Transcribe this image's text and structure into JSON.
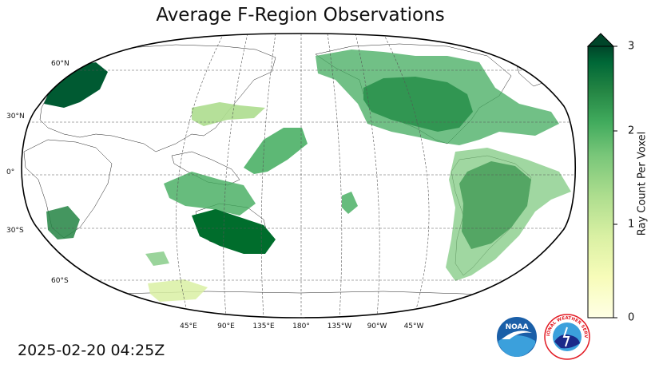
{
  "title": "Average F-Region Observations",
  "timestamp": "2025-02-20 04:25Z",
  "map": {
    "projection": "robinson",
    "central_longitude": "180",
    "grid": true,
    "lat_labels": [
      "60°N",
      "30°N",
      "0°",
      "30°S",
      "60°S"
    ],
    "lon_labels": [
      "45°E",
      "90°E",
      "135°E",
      "180°",
      "135°W",
      "90°W",
      "45°W"
    ]
  },
  "colorbar": {
    "label": "Ray Count Per Voxel",
    "ticks": [
      "0",
      "1",
      "2",
      "3"
    ],
    "min": 0,
    "max": 3,
    "extend": "max",
    "colormap": "YlGn",
    "color_low": "#ffffe0",
    "color_high": "#004529"
  },
  "logos": {
    "noaa": "NOAA",
    "nws": "NATIONAL WEATHER SERVICE",
    "noaa_color": "#1a5fa8",
    "nws_color": "#e21a23"
  }
}
